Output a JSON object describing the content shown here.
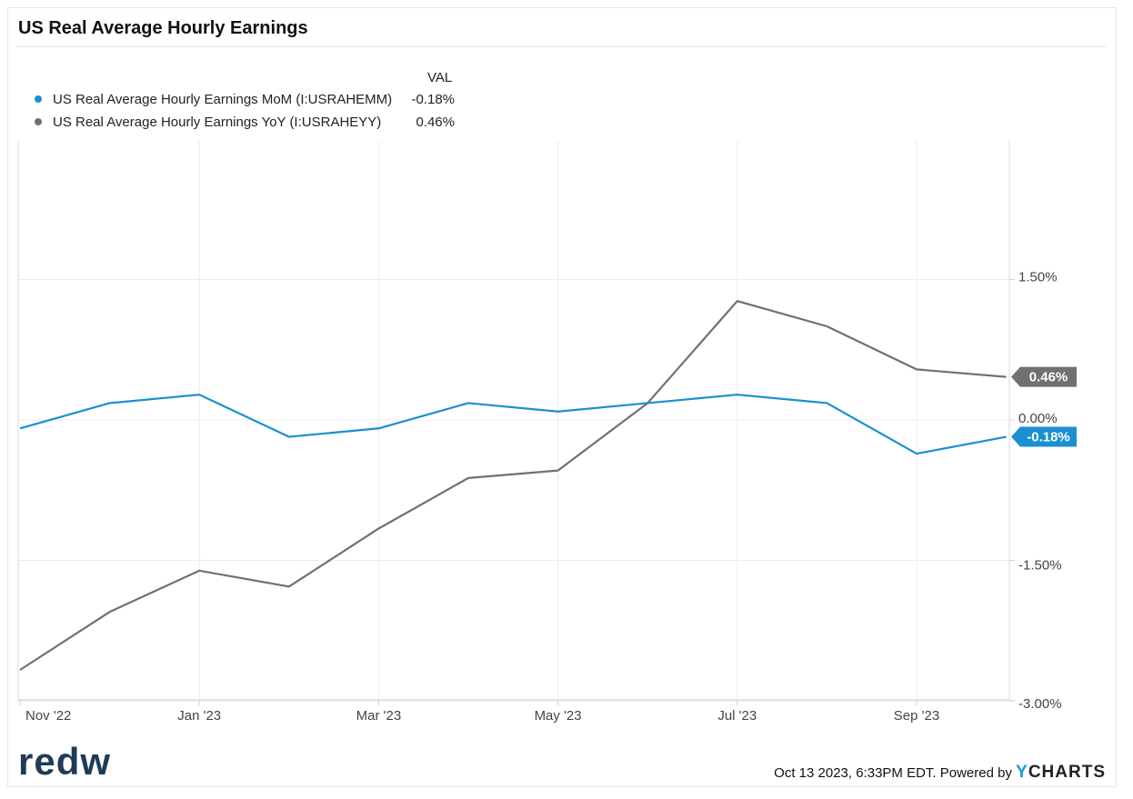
{
  "title": "US Real Average Hourly Earnings",
  "legend": {
    "header": "VAL",
    "items": [
      {
        "label": "US Real Average Hourly Earnings MoM (I:USRAHEMM)",
        "value": "-0.18%",
        "color": "#1a90d0"
      },
      {
        "label": "US Real Average Hourly Earnings YoY (I:USRAHEYY)",
        "value": "0.46%",
        "color": "#707070"
      }
    ]
  },
  "footer": {
    "timestamp": "Oct 13 2023, 6:33PM EDT. Powered by",
    "brand_prefix": "Y",
    "brand_suffix": "CHARTS",
    "logo_text": "redw"
  },
  "chart_data": {
    "type": "line",
    "x": [
      "2022-11",
      "2022-12",
      "2023-01",
      "2023-02",
      "2023-03",
      "2023-04",
      "2023-05",
      "2023-06",
      "2023-07",
      "2023-08",
      "2023-09",
      "2023-10"
    ],
    "x_tick_labels": [
      {
        "x": "2022-11",
        "label": "Nov '22"
      },
      {
        "x": "2023-01",
        "label": "Jan '23"
      },
      {
        "x": "2023-03",
        "label": "Mar '23"
      },
      {
        "x": "2023-05",
        "label": "May '23"
      },
      {
        "x": "2023-07",
        "label": "Jul '23"
      },
      {
        "x": "2023-09",
        "label": "Sep '23"
      }
    ],
    "y_ticks": [
      {
        "value": 1.5,
        "label": "1.50%"
      },
      {
        "value": 0,
        "label": "0.00%"
      },
      {
        "value": -1.5,
        "label": "-1.50%"
      },
      {
        "value": -3,
        "label": "-3.00%"
      }
    ],
    "ylim": [
      -3,
      3
    ],
    "grid": true,
    "series": [
      {
        "name": "US Real Average Hourly Earnings MoM (I:USRAHEMM)",
        "color": "#1a90d0",
        "values": [
          -0.09,
          0.18,
          0.27,
          -0.18,
          -0.09,
          0.18,
          0.09,
          0.18,
          0.27,
          0.18,
          -0.36,
          -0.18
        ],
        "end_label": "-0.18%"
      },
      {
        "name": "US Real Average Hourly Earnings YoY (I:USRAHEYY)",
        "color": "#707070",
        "values": [
          -2.67,
          -2.05,
          -1.61,
          -1.78,
          -1.16,
          -0.62,
          -0.54,
          0.18,
          1.27,
          1.0,
          0.54,
          0.46
        ],
        "end_label": "0.46%"
      }
    ]
  }
}
